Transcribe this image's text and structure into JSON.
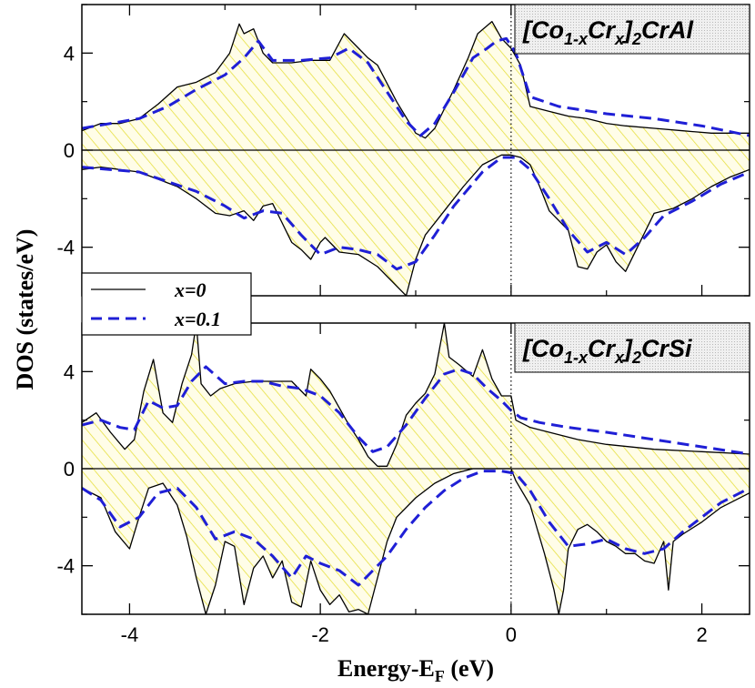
{
  "figure": {
    "xlabel_main": "Energy-E",
    "xlabel_sub": "F",
    "xlabel_unit": " (eV)",
    "ylabel": "DOS (states/eV)"
  },
  "legend": {
    "entries": [
      {
        "label": "x=0",
        "color": "#000000",
        "style": "solid"
      },
      {
        "label": "x=0.1",
        "color": "#1f1fd6",
        "style": "dashed"
      }
    ]
  },
  "colors": {
    "fill_hatch": "#e6e040",
    "fill_bg": "#fffde8",
    "series_x0": "#000000",
    "series_x01": "#1f1fd6",
    "label_box": "#e0e0e0"
  },
  "chart_data": [
    {
      "type": "line",
      "panel": "top",
      "title_parts": [
        "[Co",
        "1-x",
        "Cr",
        "x",
        "]",
        "2",
        "CrAl"
      ],
      "xlim": [
        -4.5,
        2.5
      ],
      "ylim": [
        -6,
        6
      ],
      "xticks": [
        -4,
        -2,
        0,
        2
      ],
      "yticks": [
        -4,
        0,
        4
      ],
      "ytick_labels": [
        "-4",
        "0",
        "4"
      ],
      "fermi_level": 0,
      "series": [
        {
          "name": "x=0",
          "spin_up": {
            "x": [
              -4.5,
              -4.3,
              -4.1,
              -3.9,
              -3.7,
              -3.5,
              -3.3,
              -3.1,
              -2.95,
              -2.85,
              -2.8,
              -2.7,
              -2.6,
              -2.5,
              -2.3,
              -2.1,
              -1.9,
              -1.75,
              -1.6,
              -1.5,
              -1.4,
              -1.2,
              -1.0,
              -0.9,
              -0.8,
              -0.6,
              -0.45,
              -0.35,
              -0.2,
              -0.1,
              0.0,
              0.1,
              0.2,
              0.4,
              0.6,
              0.8,
              1.0,
              1.2,
              1.5,
              1.8,
              2.1,
              2.5
            ],
            "y": [
              0.8,
              1.1,
              1.1,
              1.3,
              1.9,
              2.6,
              2.8,
              3.2,
              4.0,
              5.2,
              4.8,
              5.0,
              4.0,
              3.6,
              3.6,
              3.7,
              3.7,
              4.8,
              4.2,
              3.8,
              3.5,
              2.0,
              0.7,
              0.5,
              0.9,
              2.5,
              3.8,
              4.8,
              5.3,
              4.6,
              4.2,
              3.5,
              1.8,
              1.6,
              1.4,
              1.3,
              1.1,
              1.0,
              0.9,
              0.8,
              0.7,
              0.7
            ]
          },
          "spin_down": {
            "x": [
              -4.5,
              -4.3,
              -4.1,
              -3.9,
              -3.7,
              -3.5,
              -3.3,
              -3.1,
              -2.95,
              -2.8,
              -2.7,
              -2.6,
              -2.5,
              -2.4,
              -2.3,
              -2.2,
              -2.1,
              -2.0,
              -1.95,
              -1.8,
              -1.6,
              -1.4,
              -1.2,
              -1.1,
              -1.0,
              -0.9,
              -0.7,
              -0.5,
              -0.3,
              -0.1,
              0.0,
              0.1,
              0.2,
              0.3,
              0.4,
              0.6,
              0.7,
              0.8,
              0.9,
              1.0,
              1.1,
              1.2,
              1.35,
              1.5,
              1.7,
              1.9,
              2.1,
              2.3,
              2.5
            ],
            "y": [
              -0.8,
              -0.7,
              -0.8,
              -0.9,
              -1.2,
              -1.5,
              -2.0,
              -2.6,
              -2.7,
              -2.5,
              -2.9,
              -2.3,
              -2.2,
              -3.0,
              -3.8,
              -4.1,
              -4.5,
              -3.8,
              -3.6,
              -4.2,
              -4.3,
              -4.8,
              -5.6,
              -6.0,
              -4.5,
              -3.5,
              -2.5,
              -1.5,
              -0.6,
              -0.2,
              -0.2,
              -0.3,
              -0.6,
              -1.5,
              -2.5,
              -3.3,
              -4.8,
              -4.9,
              -4.2,
              -3.9,
              -4.6,
              -5.0,
              -3.8,
              -2.6,
              -2.4,
              -2.0,
              -1.5,
              -1.1,
              -0.8
            ]
          }
        },
        {
          "name": "x=0.1",
          "spin_up": {
            "x": [
              -4.5,
              -4.2,
              -3.9,
              -3.6,
              -3.3,
              -3.0,
              -2.8,
              -2.65,
              -2.5,
              -2.2,
              -1.9,
              -1.7,
              -1.5,
              -1.3,
              -1.1,
              -0.95,
              -0.8,
              -0.6,
              -0.4,
              -0.25,
              -0.15,
              -0.05,
              0.05,
              0.2,
              0.5,
              1.0,
              1.5,
              2.0,
              2.5
            ],
            "y": [
              0.9,
              1.1,
              1.3,
              1.8,
              2.5,
              3.1,
              3.8,
              4.5,
              3.7,
              3.7,
              3.8,
              4.2,
              3.6,
              2.4,
              1.2,
              0.6,
              1.1,
              2.4,
              3.8,
              4.2,
              4.5,
              4.6,
              4.0,
              2.2,
              1.8,
              1.5,
              1.3,
              1.0,
              0.6
            ]
          },
          "spin_down": {
            "x": [
              -4.5,
              -4.2,
              -3.9,
              -3.6,
              -3.3,
              -3.0,
              -2.8,
              -2.6,
              -2.4,
              -2.2,
              -2.0,
              -1.8,
              -1.6,
              -1.4,
              -1.2,
              -1.0,
              -0.8,
              -0.6,
              -0.3,
              -0.1,
              0.05,
              0.2,
              0.4,
              0.6,
              0.8,
              1.0,
              1.2,
              1.4,
              1.6,
              1.9,
              2.2,
              2.5
            ],
            "y": [
              -0.7,
              -0.8,
              -0.9,
              -1.3,
              -1.7,
              -2.3,
              -2.8,
              -2.5,
              -2.6,
              -3.5,
              -4.3,
              -4.0,
              -4.1,
              -4.3,
              -4.9,
              -4.6,
              -3.5,
              -2.3,
              -0.9,
              -0.3,
              -0.3,
              -0.8,
              -2.0,
              -3.3,
              -4.2,
              -3.8,
              -4.3,
              -3.6,
              -2.7,
              -2.1,
              -1.4,
              -0.9
            ]
          }
        }
      ]
    },
    {
      "type": "line",
      "panel": "bottom",
      "title_parts": [
        "[Co",
        "1-x",
        "Cr",
        "x",
        "]",
        "2",
        "CrSi"
      ],
      "xlim": [
        -4.5,
        2.5
      ],
      "ylim": [
        -6,
        6
      ],
      "xticks": [
        -4,
        -2,
        0,
        2
      ],
      "xtick_labels": [
        "-4",
        "-2",
        "0",
        "2"
      ],
      "yticks": [
        -4,
        0,
        4
      ],
      "ytick_labels": [
        "-4",
        "0",
        "4"
      ],
      "fermi_level": 0,
      "series": [
        {
          "name": "x=0",
          "spin_up": {
            "x": [
              -4.5,
              -4.35,
              -4.2,
              -4.05,
              -3.95,
              -3.85,
              -3.75,
              -3.65,
              -3.55,
              -3.45,
              -3.35,
              -3.3,
              -3.25,
              -3.15,
              -3.05,
              -2.9,
              -2.7,
              -2.5,
              -2.3,
              -2.15,
              -2.1,
              -2.0,
              -1.9,
              -1.8,
              -1.7,
              -1.6,
              -1.5,
              -1.4,
              -1.3,
              -1.2,
              -1.1,
              -1.0,
              -0.9,
              -0.8,
              -0.7,
              -0.65,
              -0.55,
              -0.4,
              -0.3,
              -0.2,
              -0.1,
              0.0,
              0.05,
              0.2,
              0.4,
              0.7,
              1.0,
              1.5,
              2.0,
              2.5
            ],
            "y": [
              1.9,
              2.3,
              1.5,
              0.8,
              1.2,
              3.2,
              4.5,
              2.3,
              1.9,
              3.5,
              4.7,
              6.0,
              3.5,
              3.0,
              3.3,
              3.5,
              3.6,
              3.6,
              3.6,
              3.0,
              4.1,
              3.7,
              3.2,
              2.5,
              1.8,
              1.2,
              0.5,
              0.1,
              0.1,
              1.0,
              2.2,
              2.7,
              3.1,
              3.9,
              6.0,
              4.6,
              4.3,
              3.8,
              4.9,
              3.7,
              3.0,
              3.0,
              2.0,
              1.7,
              1.5,
              1.2,
              1.0,
              0.8,
              0.7,
              0.6
            ]
          },
          "spin_down": {
            "x": [
              -4.5,
              -4.3,
              -4.15,
              -4.0,
              -3.9,
              -3.8,
              -3.65,
              -3.5,
              -3.4,
              -3.3,
              -3.2,
              -3.1,
              -3.0,
              -2.9,
              -2.8,
              -2.7,
              -2.6,
              -2.5,
              -2.4,
              -2.3,
              -2.2,
              -2.1,
              -2.0,
              -1.9,
              -1.8,
              -1.7,
              -1.6,
              -1.5,
              -1.4,
              -1.3,
              -1.2,
              -1.0,
              -0.8,
              -0.6,
              -0.4,
              -0.2,
              0.0,
              0.05,
              0.2,
              0.35,
              0.45,
              0.5,
              0.55,
              0.6,
              0.7,
              0.8,
              0.9,
              1.0,
              1.1,
              1.2,
              1.3,
              1.4,
              1.5,
              1.6,
              1.65,
              1.7,
              1.8,
              2.0,
              2.2,
              2.5
            ],
            "y": [
              -0.8,
              -1.2,
              -2.6,
              -3.3,
              -2.0,
              -0.8,
              -0.6,
              -1.5,
              -2.8,
              -4.5,
              -6.0,
              -4.8,
              -3.0,
              -3.2,
              -5.6,
              -4.1,
              -3.6,
              -4.5,
              -3.8,
              -5.5,
              -5.7,
              -3.8,
              -5.0,
              -5.6,
              -5.2,
              -5.9,
              -5.8,
              -6.0,
              -4.5,
              -3.0,
              -2.0,
              -1.2,
              -0.6,
              -0.2,
              0.0,
              0.0,
              0.0,
              -0.5,
              -1.5,
              -3.5,
              -5.0,
              -6.0,
              -5.0,
              -3.3,
              -2.5,
              -2.3,
              -2.6,
              -3.0,
              -3.2,
              -3.5,
              -3.5,
              -3.8,
              -3.9,
              -3.0,
              -5.0,
              -3.0,
              -2.7,
              -2.2,
              -1.6,
              -1.0
            ]
          }
        },
        {
          "name": "x=0.1",
          "spin_up": {
            "x": [
              -4.5,
              -4.3,
              -4.1,
              -3.95,
              -3.8,
              -3.65,
              -3.5,
              -3.35,
              -3.2,
              -3.0,
              -2.8,
              -2.6,
              -2.4,
              -2.2,
              -2.0,
              -1.8,
              -1.6,
              -1.45,
              -1.3,
              -1.1,
              -0.9,
              -0.7,
              -0.55,
              -0.4,
              -0.25,
              -0.1,
              0.0,
              0.1,
              0.3,
              0.6,
              1.0,
              1.5,
              2.0,
              2.5
            ],
            "y": [
              1.8,
              2.0,
              1.7,
              1.6,
              2.8,
              2.5,
              2.6,
              3.6,
              4.2,
              3.5,
              3.6,
              3.6,
              3.4,
              3.3,
              3.0,
              2.3,
              1.3,
              0.7,
              0.9,
              1.8,
              2.9,
              3.9,
              4.1,
              3.9,
              3.3,
              2.8,
              2.4,
              2.1,
              1.9,
              1.7,
              1.5,
              1.2,
              0.9,
              0.6
            ]
          },
          "spin_down": {
            "x": [
              -4.5,
              -4.3,
              -4.1,
              -3.9,
              -3.7,
              -3.5,
              -3.3,
              -3.1,
              -2.9,
              -2.7,
              -2.5,
              -2.3,
              -2.15,
              -2.0,
              -1.8,
              -1.6,
              -1.45,
              -1.3,
              -1.1,
              -0.9,
              -0.7,
              -0.5,
              -0.3,
              -0.1,
              0.05,
              0.2,
              0.4,
              0.6,
              0.8,
              1.0,
              1.2,
              1.4,
              1.6,
              1.8,
              2.0,
              2.2,
              2.5
            ],
            "y": [
              -0.8,
              -1.3,
              -2.4,
              -2.0,
              -1.0,
              -0.8,
              -1.6,
              -2.9,
              -2.6,
              -2.9,
              -3.6,
              -4.5,
              -3.6,
              -3.9,
              -4.2,
              -4.8,
              -4.2,
              -3.6,
              -2.5,
              -1.6,
              -0.9,
              -0.4,
              -0.1,
              -0.1,
              -0.2,
              -0.9,
              -2.2,
              -3.2,
              -3.1,
              -2.9,
              -3.3,
              -3.5,
              -3.3,
              -2.6,
              -2.0,
              -1.4,
              -0.8
            ]
          }
        }
      ]
    }
  ]
}
